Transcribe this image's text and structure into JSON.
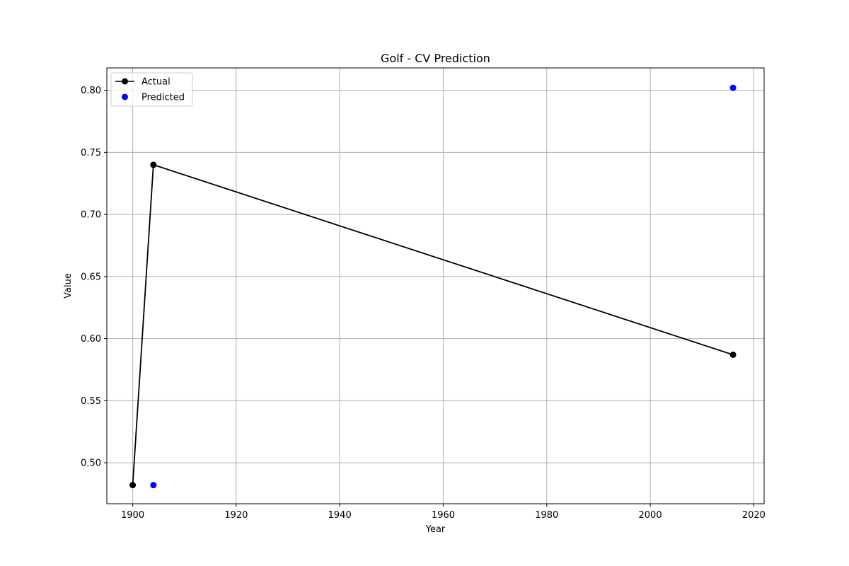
{
  "chart_data": {
    "type": "line",
    "title": "Golf - CV Prediction",
    "xlabel": "Year",
    "ylabel": "Value",
    "xlim": [
      1895,
      2022
    ],
    "ylim": [
      0.467,
      0.818
    ],
    "x_ticks": [
      1900,
      1920,
      1940,
      1960,
      1980,
      2000,
      2020
    ],
    "y_ticks": [
      0.5,
      0.55,
      0.6,
      0.65,
      0.7,
      0.75,
      0.8
    ],
    "x_tick_labels": [
      "1900",
      "1920",
      "1940",
      "1960",
      "1980",
      "2000",
      "2020"
    ],
    "y_tick_labels": [
      "0.50",
      "0.55",
      "0.60",
      "0.65",
      "0.70",
      "0.75",
      "0.80"
    ],
    "grid": true,
    "legend_position": "top-left",
    "series": [
      {
        "name": "Actual",
        "kind": "line-marker",
        "color": "#000000",
        "points": [
          {
            "x": 1900,
            "y": 0.482
          },
          {
            "x": 1904,
            "y": 0.74
          },
          {
            "x": 2016,
            "y": 0.587
          }
        ]
      },
      {
        "name": "Predicted",
        "kind": "scatter",
        "color": "#0000ff",
        "points": [
          {
            "x": 1904,
            "y": 0.482
          },
          {
            "x": 2016,
            "y": 0.802
          }
        ]
      }
    ]
  }
}
